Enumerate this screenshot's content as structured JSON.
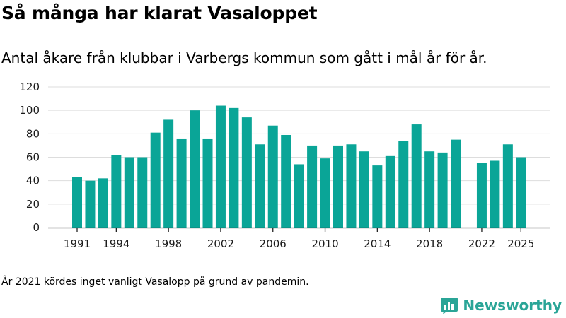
{
  "title": "Så många har klarat Vasaloppet",
  "subtitle": "Antal åkare från klubbar i Varbergs kommun som gått i mål år för år.",
  "footnote": "År 2021 kördes inget vanligt Vasalopp på grund av pandemin.",
  "brand": {
    "name": "Newsworthy",
    "logo_icon": "newsworthy-bar-chart-logo-icon"
  },
  "colors": {
    "bar": "#0aa597",
    "brand": "#2aa597",
    "grid": "#dddddd",
    "axis": "#222222"
  },
  "chart_data": {
    "type": "bar",
    "title": "",
    "xlabel": "",
    "ylabel": "",
    "ylim": [
      0,
      120
    ],
    "yticks": [
      0,
      20,
      40,
      60,
      80,
      100,
      120
    ],
    "xticks": [
      1991,
      1994,
      1998,
      2002,
      2006,
      2010,
      2014,
      2018,
      2022,
      2025
    ],
    "grid": "horizontal",
    "categories": [
      1991,
      1992,
      1993,
      1994,
      1995,
      1996,
      1997,
      1998,
      1999,
      2000,
      2001,
      2002,
      2003,
      2004,
      2005,
      2006,
      2007,
      2008,
      2009,
      2010,
      2011,
      2012,
      2013,
      2014,
      2015,
      2016,
      2017,
      2018,
      2019,
      2020,
      2021,
      2022,
      2023,
      2024,
      2025
    ],
    "values": [
      43,
      40,
      42,
      62,
      60,
      60,
      81,
      92,
      76,
      100,
      76,
      104,
      102,
      94,
      71,
      87,
      79,
      54,
      70,
      59,
      70,
      71,
      65,
      53,
      61,
      74,
      88,
      65,
      64,
      75,
      null,
      55,
      57,
      71,
      60
    ]
  }
}
